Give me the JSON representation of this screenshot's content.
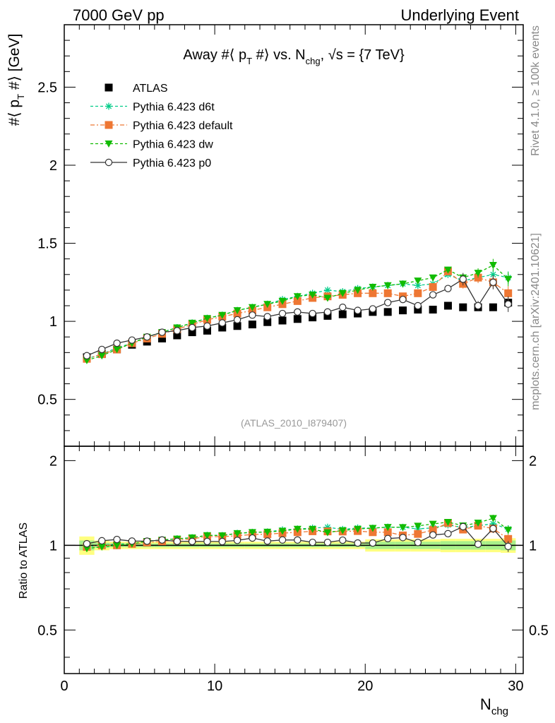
{
  "header": {
    "left": "7000 GeV pp",
    "right": "Underlying Event"
  },
  "side_labels": {
    "rivet": "Rivet 4.1.0, ≥ 100k events",
    "mcplots": "mcplots.cern.ch [arXiv:2401.10621]"
  },
  "chart_data": {
    "type": "scatter",
    "title": "Away #⟨ p_T #⟩ vs. N_chg, √s = {7 TeV}",
    "title_parts": {
      "t1": "Away #⟨ p",
      "t1_sub": "T",
      "t2": " #⟩ vs. N",
      "t2_sub": "chg",
      "t3": ", √s = {7 TeV}"
    },
    "analysis_id": "(ATLAS_2010_I879407)",
    "xlabel": "N",
    "xlabel_sub": "chg",
    "ylabel": "#⟨ p_T #⟩ [GeV]",
    "ylabel_parts": {
      "a": "#⟨ p",
      "sub": "T",
      "b": " #⟩ [GeV]"
    },
    "ratio_ylabel": "Ratio to ATLAS",
    "xlim": [
      0,
      30.5
    ],
    "ylim": [
      0.2,
      2.9
    ],
    "ratio_ylim": [
      0.35,
      2.25
    ],
    "x_ticks": [
      "0",
      "10",
      "20",
      "30"
    ],
    "y_ticks": [
      "0.5",
      "1",
      "1.5",
      "2",
      "2.5"
    ],
    "ratio_y_ticks": [
      "0.5",
      "1",
      "2"
    ],
    "legend_position": "top-left",
    "x": [
      1.5,
      2.5,
      3.5,
      4.5,
      5.5,
      6.5,
      7.5,
      8.5,
      9.5,
      10.5,
      11.5,
      12.5,
      13.5,
      14.5,
      15.5,
      16.5,
      17.5,
      18.5,
      19.5,
      20.5,
      21.5,
      22.5,
      23.5,
      24.5,
      25.5,
      26.5,
      27.5,
      28.5,
      29.5
    ],
    "series": [
      {
        "name": "ATLAS",
        "marker": "square",
        "color": "#000000",
        "values": [
          0.77,
          0.79,
          0.82,
          0.85,
          0.87,
          0.89,
          0.91,
          0.93,
          0.94,
          0.96,
          0.97,
          0.98,
          0.995,
          1.005,
          1.015,
          1.025,
          1.035,
          1.045,
          1.05,
          1.06,
          1.06,
          1.07,
          1.075,
          1.075,
          1.1,
          1.09,
          1.09,
          1.09,
          1.12
        ],
        "errors": [
          0,
          0,
          0,
          0,
          0,
          0,
          0,
          0,
          0,
          0,
          0,
          0,
          0,
          0,
          0,
          0,
          0,
          0,
          0,
          0,
          0,
          0,
          0,
          0,
          0,
          0,
          0,
          0,
          0
        ],
        "band_inner": [
          0.04,
          0.02,
          0.015,
          0.015,
          0.015,
          0.015,
          0.015,
          0.015,
          0.015,
          0.015,
          0.015,
          0.015,
          0.015,
          0.015,
          0.015,
          0.015,
          0.015,
          0.015,
          0.015,
          0.03,
          0.03,
          0.03,
          0.03,
          0.03,
          0.035,
          0.035,
          0.035,
          0.035,
          0.04
        ],
        "band_outer": [
          0.075,
          0.04,
          0.03,
          0.03,
          0.03,
          0.03,
          0.03,
          0.03,
          0.03,
          0.03,
          0.03,
          0.03,
          0.03,
          0.03,
          0.03,
          0.03,
          0.03,
          0.03,
          0.03,
          0.05,
          0.05,
          0.05,
          0.05,
          0.05,
          0.055,
          0.055,
          0.055,
          0.055,
          0.06
        ]
      },
      {
        "name": "Pythia 6.423 d6t",
        "marker": "star",
        "color": "#00cc88",
        "dash": "4,3",
        "values": [
          0.76,
          0.79,
          0.83,
          0.86,
          0.9,
          0.93,
          0.96,
          0.99,
          1.02,
          1.04,
          1.07,
          1.09,
          1.11,
          1.14,
          1.16,
          1.18,
          1.2,
          1.19,
          1.21,
          1.22,
          1.23,
          1.24,
          1.23,
          1.24,
          1.3,
          1.26,
          1.28,
          1.3,
          1.28
        ],
        "errors": [
          0.005,
          0.005,
          0.005,
          0.005,
          0.005,
          0.005,
          0.005,
          0.005,
          0.006,
          0.006,
          0.006,
          0.007,
          0.007,
          0.008,
          0.008,
          0.009,
          0.01,
          0.01,
          0.011,
          0.012,
          0.013,
          0.014,
          0.015,
          0.017,
          0.02,
          0.025,
          0.03,
          0.035,
          0.04
        ]
      },
      {
        "name": "Pythia 6.423 default",
        "marker": "square",
        "color": "#ee7733",
        "dash": "6,3,2,3",
        "values": [
          0.76,
          0.79,
          0.82,
          0.86,
          0.89,
          0.92,
          0.95,
          0.98,
          1.01,
          1.03,
          1.05,
          1.07,
          1.09,
          1.11,
          1.13,
          1.15,
          1.16,
          1.17,
          1.18,
          1.18,
          1.18,
          1.16,
          1.18,
          1.22,
          1.32,
          1.24,
          1.28,
          1.25,
          1.18
        ],
        "errors": [
          0.005,
          0.005,
          0.005,
          0.005,
          0.005,
          0.005,
          0.005,
          0.005,
          0.006,
          0.006,
          0.006,
          0.007,
          0.007,
          0.008,
          0.008,
          0.009,
          0.01,
          0.01,
          0.011,
          0.012,
          0.013,
          0.014,
          0.015,
          0.017,
          0.02,
          0.03,
          0.035,
          0.04,
          0.045
        ]
      },
      {
        "name": "Pythia 6.423 dw",
        "marker": "triangle-down",
        "color": "#11bb00",
        "dash": "4,3",
        "values": [
          0.75,
          0.78,
          0.82,
          0.86,
          0.9,
          0.93,
          0.96,
          0.99,
          1.02,
          1.04,
          1.07,
          1.09,
          1.11,
          1.13,
          1.16,
          1.17,
          1.15,
          1.18,
          1.2,
          1.22,
          1.23,
          1.24,
          1.26,
          1.28,
          1.33,
          1.28,
          1.31,
          1.36,
          1.27
        ],
        "errors": [
          0.005,
          0.005,
          0.005,
          0.005,
          0.005,
          0.005,
          0.005,
          0.005,
          0.006,
          0.006,
          0.006,
          0.007,
          0.007,
          0.008,
          0.008,
          0.009,
          0.01,
          0.01,
          0.011,
          0.012,
          0.013,
          0.014,
          0.015,
          0.017,
          0.02,
          0.025,
          0.03,
          0.04,
          0.045
        ]
      },
      {
        "name": "Pythia 6.423 p0",
        "marker": "circle-open",
        "color": "#333333",
        "dash": "",
        "values": [
          0.78,
          0.82,
          0.86,
          0.88,
          0.9,
          0.93,
          0.94,
          0.96,
          0.97,
          0.99,
          1.01,
          1.04,
          1.03,
          1.05,
          1.06,
          1.05,
          1.06,
          1.09,
          1.07,
          1.08,
          1.12,
          1.14,
          1.1,
          1.17,
          1.21,
          1.27,
          1.1,
          1.25,
          1.11
        ],
        "errors": [
          0.005,
          0.005,
          0.005,
          0.005,
          0.005,
          0.005,
          0.005,
          0.005,
          0.006,
          0.006,
          0.006,
          0.007,
          0.007,
          0.008,
          0.008,
          0.009,
          0.01,
          0.01,
          0.011,
          0.012,
          0.013,
          0.014,
          0.015,
          0.017,
          0.02,
          0.04,
          0.03,
          0.045,
          0.05
        ]
      }
    ]
  }
}
